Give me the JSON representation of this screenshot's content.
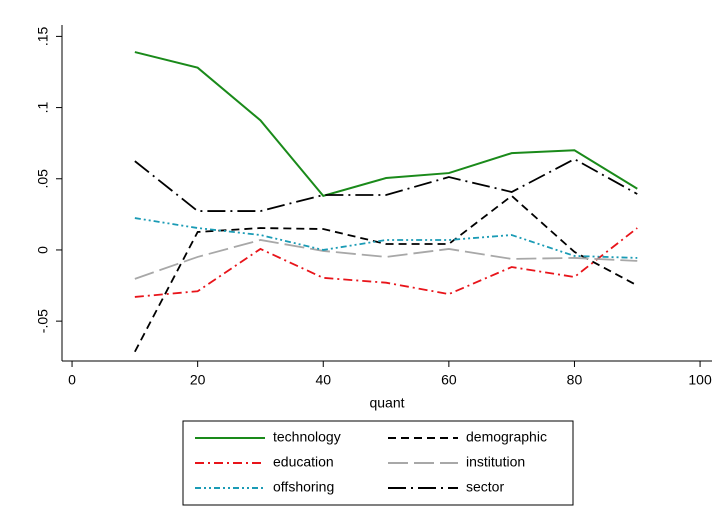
{
  "chart_data": {
    "type": "line",
    "x_label": "quant",
    "x": [
      10,
      20,
      30,
      40,
      50,
      60,
      70,
      80,
      90
    ],
    "xlim": [
      -1.6,
      101.9
    ],
    "xticks": [
      0,
      20,
      40,
      60,
      80,
      100
    ],
    "ylim": [
      -0.078,
      0.158
    ],
    "yticks": [
      {
        "value": -0.05,
        "label": "-.05"
      },
      {
        "value": 0,
        "label": "0"
      },
      {
        "value": 0.05,
        "label": ".05"
      },
      {
        "value": 0.1,
        "label": ".1"
      },
      {
        "value": 0.15,
        "label": ".15"
      }
    ],
    "grid": false,
    "legend": "bottom",
    "series": [
      {
        "name": "technology",
        "color": "#1a8a1a",
        "style": "solid",
        "values": [
          0.139,
          0.128,
          0.091,
          0.038,
          0.0505,
          0.054,
          0.068,
          0.07,
          0.043
        ]
      },
      {
        "name": "demographic",
        "color": "#000000",
        "style": "dash",
        "values": [
          -0.0715,
          0.0126,
          0.0154,
          0.0147,
          0.0042,
          0.0042,
          0.038,
          -0.0014,
          -0.025
        ]
      },
      {
        "name": "education",
        "color": "#e8141a",
        "style": "dash-dot",
        "values": [
          -0.033,
          -0.029,
          0.0007,
          -0.0196,
          -0.023,
          -0.031,
          -0.012,
          -0.019,
          0.0154
        ]
      },
      {
        "name": "institution",
        "color": "#a8a8a8",
        "style": "long-dash",
        "values": [
          -0.0203,
          -0.0049,
          0.007,
          -0.0007,
          -0.0049,
          0.0007,
          -0.0063,
          -0.0056,
          -0.0077
        ]
      },
      {
        "name": "offshoring",
        "color": "#1a9bb5",
        "style": "dash-dot-dot",
        "values": [
          0.0224,
          0.0154,
          0.0105,
          0,
          0.007,
          0.007,
          0.0105,
          -0.0042,
          -0.0056
        ]
      },
      {
        "name": "sector",
        "color": "#000000",
        "style": "long-dash-dot",
        "values": [
          0.0624,
          0.0273,
          0.0273,
          0.0386,
          0.0386,
          0.0512,
          0.0407,
          0.0638,
          0.0393
        ]
      }
    ]
  }
}
